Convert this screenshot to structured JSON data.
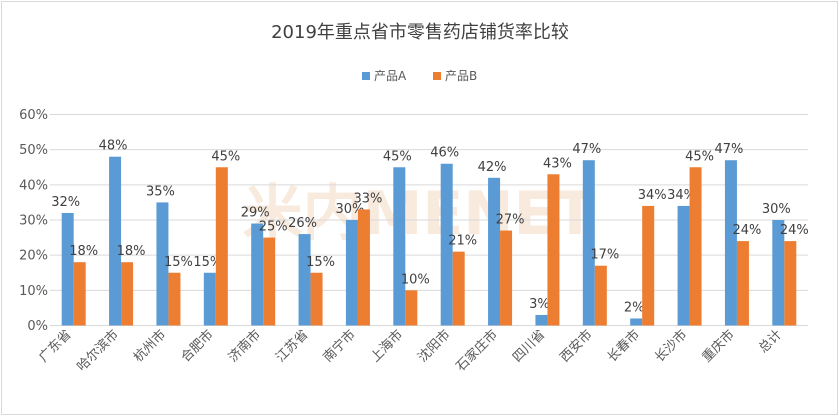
{
  "chart_data": {
    "type": "bar",
    "title": "2019年重点省市零售药店铺货率比较",
    "watermark": "米内MENET",
    "categories": [
      "广东省",
      "哈尔滨市",
      "杭州市",
      "合肥市",
      "济南市",
      "江苏省",
      "南宁市",
      "上海市",
      "沈阳市",
      "石家庄市",
      "四川省",
      "西安市",
      "长春市",
      "长沙市",
      "重庆市",
      "总计"
    ],
    "series": [
      {
        "name": "产品A",
        "color": "#5b9bd5",
        "values": [
          32,
          48,
          35,
          15,
          29,
          26,
          30,
          45,
          46,
          42,
          3,
          47,
          2,
          34,
          47,
          30
        ],
        "labels": [
          "32%",
          "48%",
          "35%",
          "15%",
          "29%",
          "26%",
          "30%",
          "45%",
          "46%",
          "42%",
          "3%",
          "47%",
          "2%",
          "34%",
          "47%",
          "30%"
        ]
      },
      {
        "name": "产品B",
        "color": "#ed7d31",
        "values": [
          18,
          18,
          15,
          45,
          25,
          15,
          33,
          10,
          21,
          27,
          43,
          17,
          34,
          45,
          24,
          24
        ],
        "labels": [
          "18%",
          "18%",
          "15%",
          "45%",
          "25%",
          "15%",
          "33%",
          "10%",
          "21%",
          "27%",
          "43%",
          "17%",
          "34%",
          "45%",
          "24%",
          "24%"
        ]
      }
    ],
    "yticks": [
      "0%",
      "10%",
      "20%",
      "30%",
      "40%",
      "50%",
      "60%"
    ],
    "ylim": [
      0,
      60
    ],
    "grid": true,
    "legend": "top-center"
  }
}
